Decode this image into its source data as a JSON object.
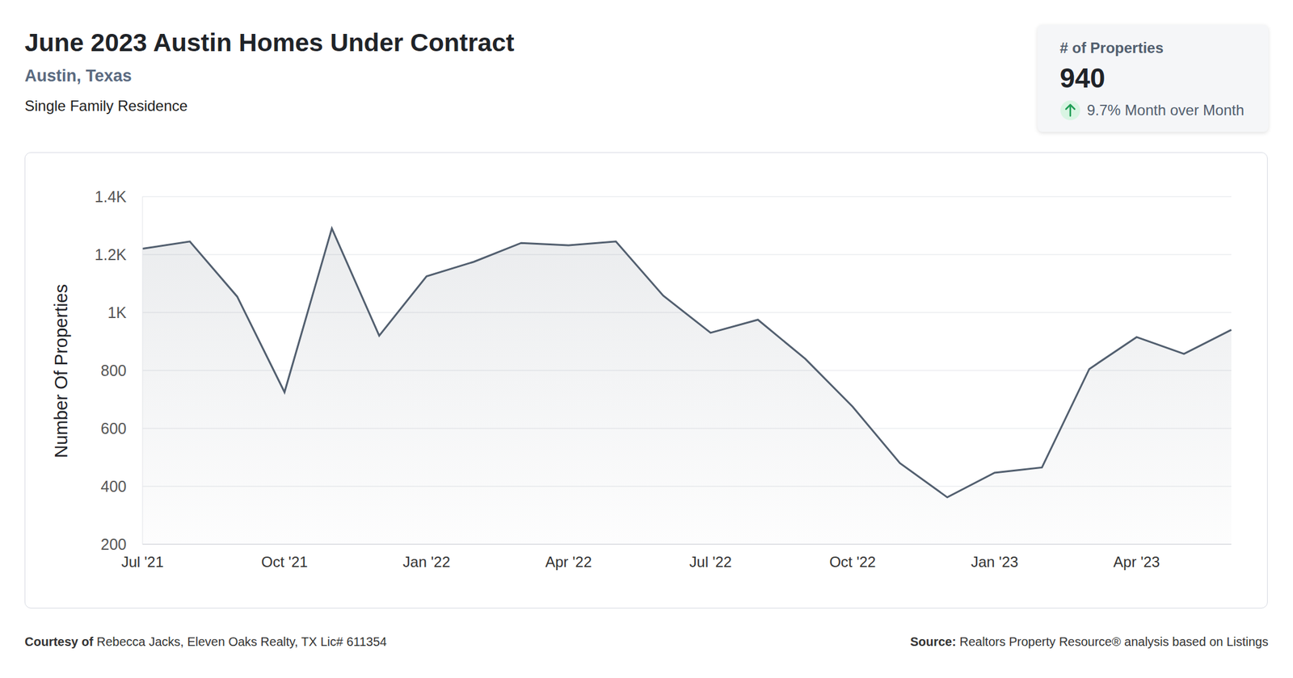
{
  "header": {
    "title": "June 2023 Austin Homes Under Contract",
    "subtitle": "Austin, Texas",
    "property_type": "Single Family Residence"
  },
  "kpi": {
    "label": "# of Properties",
    "value": "940",
    "change": "9.7% Month over Month"
  },
  "footer": {
    "courtesy_label": "Courtesy of",
    "courtesy": "Rebecca Jacks, Eleven Oaks Realty, TX Lic# 611354",
    "source_label": "Source:",
    "source": "Realtors Property Resource® analysis based on Listings"
  },
  "chart_data": {
    "type": "area",
    "y_label": "Number Of Properties",
    "categories": [
      "Jul '21",
      null,
      null,
      "Oct '21",
      null,
      null,
      "Jan '22",
      null,
      null,
      "Apr '22",
      null,
      null,
      "Jul '22",
      null,
      null,
      "Oct '22",
      null,
      null,
      "Jan '23",
      null,
      null,
      "Apr '23",
      null,
      null
    ],
    "values": [
      1220,
      1245,
      1055,
      725,
      1290,
      920,
      1125,
      1175,
      1240,
      1232,
      1245,
      1058,
      930,
      975,
      840,
      675,
      480,
      362,
      447,
      465,
      805,
      915,
      857,
      940
    ],
    "color": "#525f6f",
    "ylim": [
      200,
      1400
    ],
    "yticks": [
      200,
      400,
      600,
      800,
      {
        "value": 1000,
        "label": "1K"
      },
      {
        "value": 1200,
        "label": "1.2K"
      },
      {
        "value": 1400,
        "label": "1.4K"
      }
    ],
    "grid": true,
    "legend": false
  }
}
